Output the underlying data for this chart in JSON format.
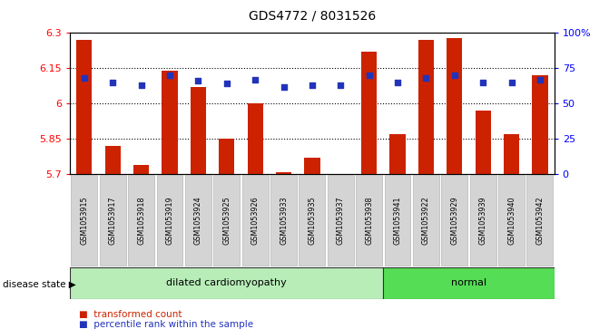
{
  "title": "GDS4772 / 8031526",
  "samples": [
    "GSM1053915",
    "GSM1053917",
    "GSM1053918",
    "GSM1053919",
    "GSM1053924",
    "GSM1053925",
    "GSM1053926",
    "GSM1053933",
    "GSM1053935",
    "GSM1053937",
    "GSM1053938",
    "GSM1053941",
    "GSM1053922",
    "GSM1053929",
    "GSM1053939",
    "GSM1053940",
    "GSM1053942"
  ],
  "bar_values": [
    6.27,
    5.82,
    5.74,
    6.14,
    6.07,
    5.85,
    6.0,
    5.71,
    5.77,
    5.7,
    6.22,
    5.87,
    6.27,
    6.28,
    5.97,
    5.87,
    6.12
  ],
  "percentile_values": [
    68,
    65,
    63,
    70,
    66,
    64,
    67,
    62,
    63,
    63,
    70,
    65,
    68,
    70,
    65,
    65,
    67
  ],
  "ymin": 5.7,
  "ymax": 6.3,
  "yticks_left": [
    5.7,
    5.85,
    6.0,
    6.15,
    6.3
  ],
  "ytick_labels_left": [
    "5.7",
    "5.85",
    "6",
    "6.15",
    "6.3"
  ],
  "yticks_right": [
    0,
    25,
    50,
    75,
    100
  ],
  "ytick_labels_right": [
    "0",
    "25",
    "50",
    "75",
    "100%"
  ],
  "grid_values": [
    5.85,
    6.0,
    6.15
  ],
  "bar_color": "#cc2200",
  "dot_color": "#2233bb",
  "disease_groups": [
    {
      "label": "dilated cardiomyopathy",
      "start": 0,
      "end": 11,
      "color": "#b8edb8"
    },
    {
      "label": "normal",
      "start": 11,
      "end": 17,
      "color": "#55dd55"
    }
  ],
  "disease_state_label": "disease state",
  "legend": [
    {
      "color": "#cc2200",
      "label": "transformed count"
    },
    {
      "color": "#2233bb",
      "label": "percentile rank within the sample"
    }
  ]
}
